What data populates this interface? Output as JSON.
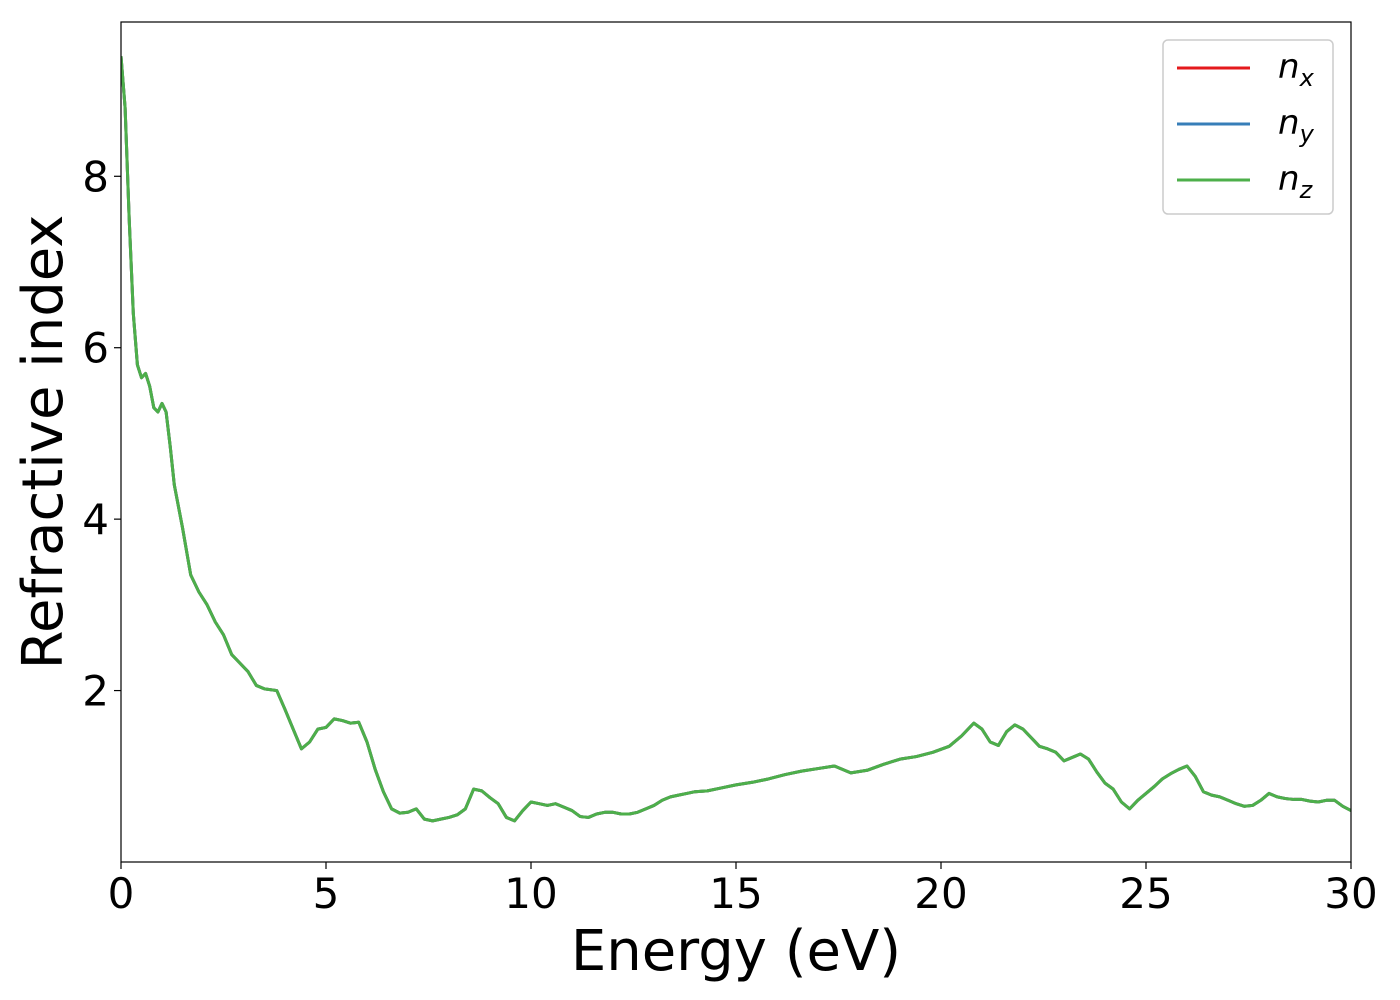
{
  "chart_data": {
    "type": "line",
    "title": "",
    "xlabel": "Energy (eV)",
    "ylabel": "Refractive index",
    "xlim": [
      0,
      30
    ],
    "ylim": [
      0,
      9.8
    ],
    "xticks": [
      0,
      5,
      10,
      15,
      20,
      25,
      30
    ],
    "yticks": [
      2,
      4,
      6,
      8
    ],
    "grid": false,
    "legend_position": "top-right",
    "series": [
      {
        "name": "n_x",
        "label_base": "n",
        "label_sub": "x",
        "color": "#e41a1c",
        "x": [
          0,
          0.1,
          0.2,
          0.3,
          0.4,
          0.5,
          0.6,
          0.7,
          0.8,
          0.9,
          1.0,
          1.1,
          1.2,
          1.3,
          1.5,
          1.7,
          1.9,
          2.1,
          2.3,
          2.5,
          2.7,
          2.9,
          3.1,
          3.3,
          3.5,
          3.8,
          4.0,
          4.2,
          4.4,
          4.6,
          4.8,
          5.0,
          5.2,
          5.4,
          5.6,
          5.8,
          6.0,
          6.2,
          6.4,
          6.6,
          6.8,
          7.0,
          7.2,
          7.4,
          7.6,
          7.8,
          8.0,
          8.2,
          8.4,
          8.6,
          8.8,
          9.0,
          9.2,
          9.4,
          9.6,
          9.8,
          10.0,
          10.2,
          10.4,
          10.6,
          10.8,
          11.0,
          11.2,
          11.4,
          11.6,
          11.8,
          12.0,
          12.2,
          12.4,
          12.6,
          12.8,
          13.0,
          13.2,
          13.4,
          13.6,
          13.8,
          14.0,
          14.3,
          14.6,
          15.0,
          15.4,
          15.8,
          16.2,
          16.6,
          17.0,
          17.4,
          17.8,
          18.2,
          18.6,
          19.0,
          19.4,
          19.8,
          20.2,
          20.5,
          20.8,
          21.0,
          21.2,
          21.4,
          21.6,
          21.8,
          22.0,
          22.2,
          22.4,
          22.6,
          22.8,
          23.0,
          23.2,
          23.4,
          23.6,
          23.8,
          24.0,
          24.2,
          24.4,
          24.6,
          24.8,
          25.0,
          25.2,
          25.4,
          25.6,
          25.8,
          26.0,
          26.2,
          26.4,
          26.6,
          26.8,
          27.0,
          27.2,
          27.4,
          27.6,
          27.8,
          28.0,
          28.2,
          28.4,
          28.6,
          28.8,
          29.0,
          29.2,
          29.4,
          29.6,
          29.8,
          30.0
        ],
        "y": [
          9.4,
          8.8,
          7.5,
          6.4,
          5.8,
          5.65,
          5.7,
          5.55,
          5.3,
          5.25,
          5.35,
          5.25,
          4.85,
          4.4,
          3.9,
          3.35,
          3.15,
          3.0,
          2.8,
          2.65,
          2.42,
          2.32,
          2.22,
          2.06,
          2.02,
          2.0,
          1.78,
          1.55,
          1.32,
          1.4,
          1.55,
          1.57,
          1.67,
          1.65,
          1.62,
          1.63,
          1.4,
          1.08,
          0.82,
          0.62,
          0.57,
          0.58,
          0.62,
          0.5,
          0.48,
          0.5,
          0.52,
          0.55,
          0.62,
          0.85,
          0.83,
          0.75,
          0.68,
          0.52,
          0.48,
          0.6,
          0.7,
          0.68,
          0.66,
          0.68,
          0.64,
          0.6,
          0.53,
          0.52,
          0.56,
          0.58,
          0.58,
          0.56,
          0.56,
          0.58,
          0.62,
          0.66,
          0.72,
          0.76,
          0.78,
          0.8,
          0.82,
          0.83,
          0.86,
          0.9,
          0.93,
          0.97,
          1.02,
          1.06,
          1.09,
          1.12,
          1.04,
          1.07,
          1.14,
          1.2,
          1.23,
          1.28,
          1.35,
          1.47,
          1.62,
          1.55,
          1.4,
          1.36,
          1.52,
          1.6,
          1.55,
          1.45,
          1.35,
          1.32,
          1.28,
          1.18,
          1.22,
          1.26,
          1.2,
          1.05,
          0.92,
          0.85,
          0.7,
          0.62,
          0.72,
          0.8,
          0.88,
          0.97,
          1.03,
          1.08,
          1.12,
          1.0,
          0.82,
          0.78,
          0.76,
          0.72,
          0.68,
          0.65,
          0.66,
          0.72,
          0.8,
          0.76,
          0.74,
          0.73,
          0.73,
          0.71,
          0.7,
          0.72,
          0.72,
          0.65,
          0.6
        ]
      },
      {
        "name": "n_y",
        "label_base": "n",
        "label_sub": "y",
        "color": "#377eb8",
        "same_as": "n_x"
      },
      {
        "name": "n_z",
        "label_base": "n",
        "label_sub": "z",
        "color": "#4daf4a",
        "same_as": "n_x"
      }
    ]
  }
}
